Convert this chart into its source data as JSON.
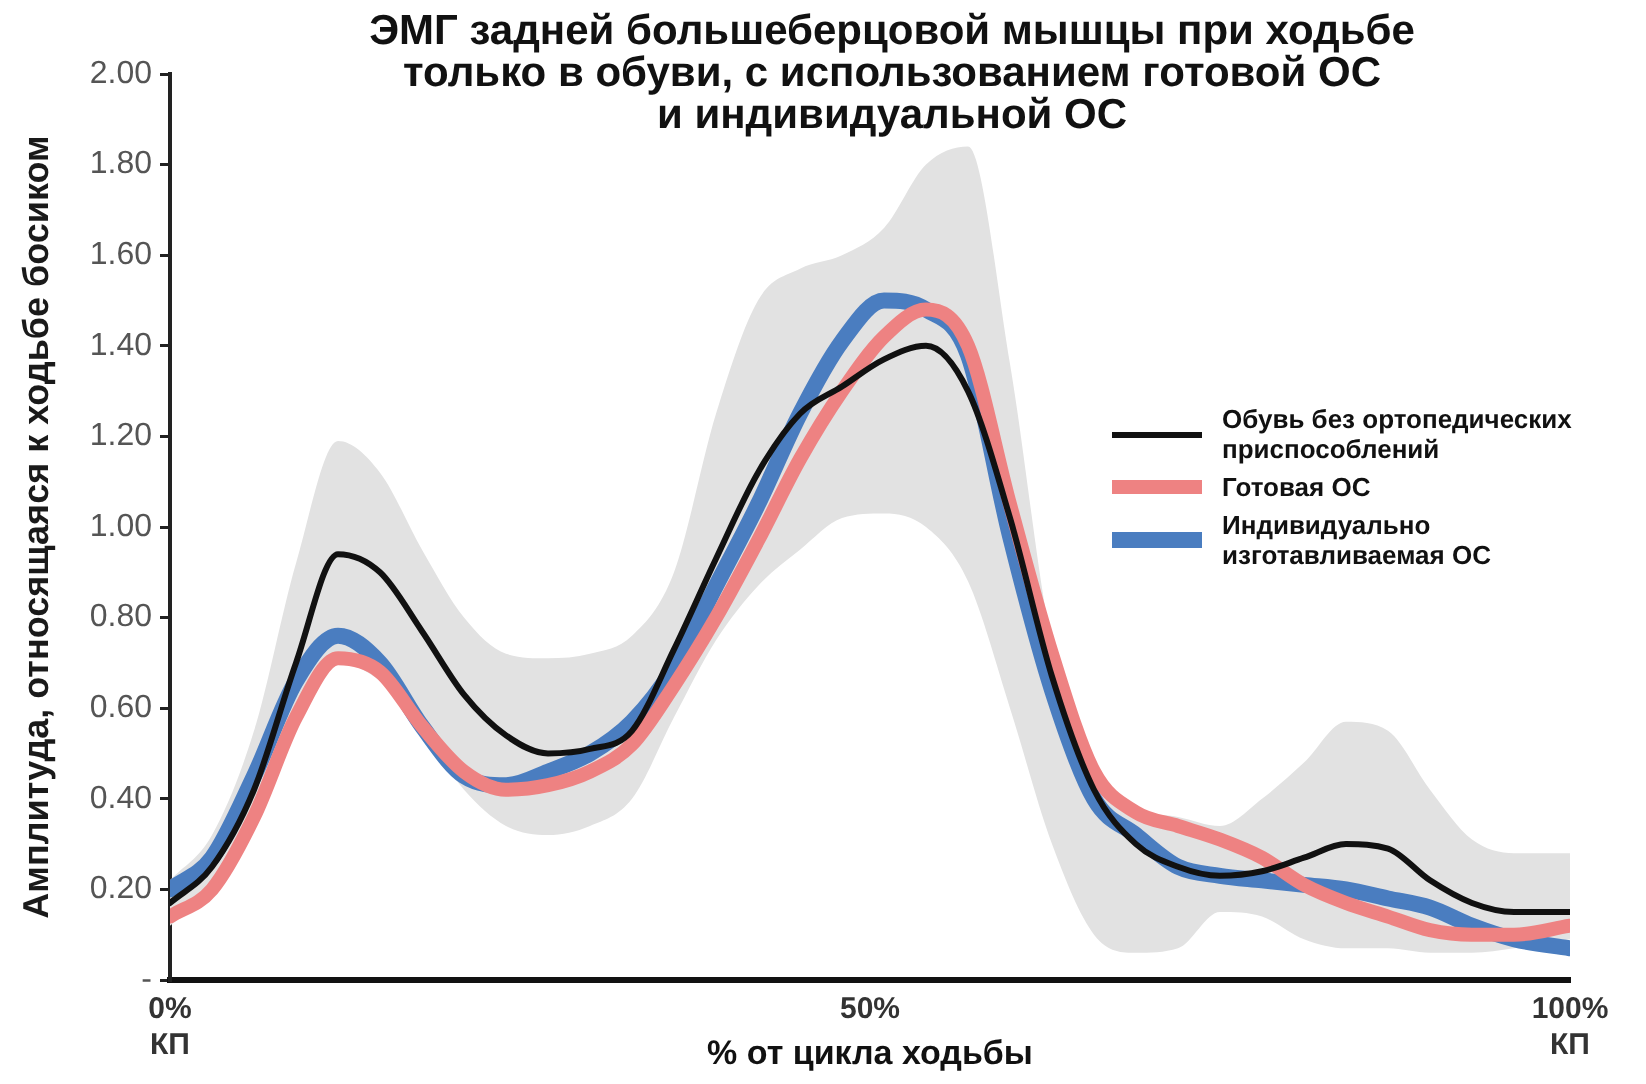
{
  "chart_data": {
    "type": "line",
    "title": "ЭМГ задней большеберцовой мышцы при ходьбе\nтолько в обуви, с использованием готовой ОС\nи индивидуальной ОС",
    "xlabel": "% от цикла ходьбы",
    "ylabel": "Амплитуда, относящаяся к ходьбе босиком",
    "x": [
      0,
      3,
      6,
      9,
      12,
      15,
      18,
      21,
      24,
      27,
      30,
      33,
      36,
      39,
      42,
      45,
      48,
      51,
      54,
      57,
      60,
      63,
      66,
      69,
      72,
      75,
      78,
      81,
      84,
      87,
      90,
      93,
      96,
      100
    ],
    "xlim": [
      0,
      100
    ],
    "xticks": [
      {
        "value": 0,
        "label": "0%\nКП"
      },
      {
        "value": 50,
        "label": "50%"
      },
      {
        "value": 100,
        "label": "100%\nКП"
      }
    ],
    "ylim": [
      0,
      2
    ],
    "yticks": [
      {
        "value": 0,
        "label": "-"
      },
      {
        "value": 0.2,
        "label": "0.20"
      },
      {
        "value": 0.4,
        "label": "0.40"
      },
      {
        "value": 0.6,
        "label": "0.60"
      },
      {
        "value": 0.8,
        "label": "0.80"
      },
      {
        "value": 1,
        "label": "1.00"
      },
      {
        "value": 1.2,
        "label": "1.20"
      },
      {
        "value": 1.4,
        "label": "1.40"
      },
      {
        "value": 1.6,
        "label": "1.60"
      },
      {
        "value": 1.8,
        "label": "1.80"
      },
      {
        "value": 2,
        "label": "2.00"
      }
    ],
    "legend": "right",
    "marker": "none",
    "series": [
      {
        "name": "Обувь без ортопедических приспособлений",
        "color": "#111111",
        "values": [
          0.17,
          0.25,
          0.42,
          0.7,
          0.94,
          0.9,
          0.77,
          0.63,
          0.54,
          0.5,
          0.51,
          0.55,
          0.73,
          0.93,
          1.12,
          1.25,
          1.31,
          1.37,
          1.4,
          1.3,
          1.02,
          0.67,
          0.42,
          0.3,
          0.25,
          0.23,
          0.24,
          0.27,
          0.3,
          0.29,
          0.22,
          0.17,
          0.15,
          0.15
        ],
        "lower": [
          0.12,
          0.2,
          0.36,
          0.58,
          0.7,
          0.66,
          0.55,
          0.42,
          0.34,
          0.32,
          0.34,
          0.4,
          0.58,
          0.75,
          0.87,
          0.95,
          1.02,
          1.03,
          1.0,
          0.88,
          0.6,
          0.3,
          0.1,
          0.06,
          0.07,
          0.15,
          0.14,
          0.09,
          0.07,
          0.07,
          0.06,
          0.06,
          0.07,
          0.09
        ],
        "upper": [
          0.22,
          0.32,
          0.55,
          0.92,
          1.19,
          1.12,
          0.95,
          0.8,
          0.72,
          0.71,
          0.72,
          0.76,
          0.9,
          1.25,
          1.5,
          1.57,
          1.6,
          1.66,
          1.8,
          1.84,
          1.36,
          0.74,
          0.48,
          0.38,
          0.36,
          0.34,
          0.4,
          0.48,
          0.57,
          0.55,
          0.42,
          0.31,
          0.28,
          0.28
        ]
      },
      {
        "name": "Готовая ОС",
        "color": "#ee8282",
        "values": [
          0.14,
          0.2,
          0.36,
          0.58,
          0.71,
          0.68,
          0.56,
          0.46,
          0.42,
          0.43,
          0.46,
          0.52,
          0.65,
          0.8,
          0.97,
          1.15,
          1.3,
          1.42,
          1.48,
          1.4,
          1.05,
          0.72,
          0.46,
          0.37,
          0.34,
          0.31,
          0.27,
          0.21,
          0.17,
          0.14,
          0.11,
          0.1,
          0.1,
          0.12
        ]
      },
      {
        "name": "Индивидуально изготавливаемая ОС",
        "color": "#4a7dc0",
        "values": [
          0.2,
          0.27,
          0.45,
          0.66,
          0.76,
          0.7,
          0.56,
          0.45,
          0.43,
          0.46,
          0.5,
          0.57,
          0.69,
          0.87,
          1.05,
          1.25,
          1.41,
          1.5,
          1.48,
          1.38,
          0.98,
          0.64,
          0.4,
          0.32,
          0.25,
          0.23,
          0.22,
          0.21,
          0.2,
          0.18,
          0.16,
          0.12,
          0.09,
          0.07
        ]
      }
    ]
  }
}
